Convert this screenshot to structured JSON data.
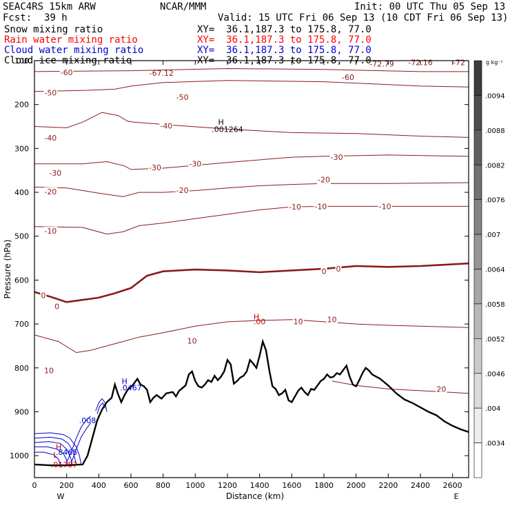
{
  "header": {
    "model": "SEAC4RS 15km ARW",
    "org": "NCAR/MMM",
    "init": "Init: 00 UTC Thu 05 Sep 13",
    "fcst_label": "Fcst:",
    "fcst_value": "39 h",
    "valid": "Valid: 15 UTC Fri 06 Sep 13 (10 CDT Fri 06 Sep 13)"
  },
  "fields": [
    {
      "name": "Snow mixing ratio",
      "xy": "XY=  36.1,187.3 to 175.8, 77.0",
      "color": "#000000"
    },
    {
      "name": "Rain water mixing ratio",
      "xy": "XY=  36.1,187.3 to 175.8, 77.0",
      "color": "#ff0000"
    },
    {
      "name": "Cloud water mixing ratio",
      "xy": "XY=  36.1,187.3 to 175.8, 77.0",
      "color": "#0000cc"
    },
    {
      "name": "Cloud ice mixing ratio",
      "xy": "XY=  36.1,187.3 to 175.8, 77.0",
      "color": "#000000"
    }
  ],
  "chart_data": {
    "type": "cross-section",
    "xlabel": "Distance (km)",
    "ylabel": "Pressure (hPa)",
    "xlim": [
      0,
      2700
    ],
    "ylim": [
      1050,
      100
    ],
    "x_ticks": [
      0,
      200,
      400,
      600,
      800,
      1000,
      1200,
      1400,
      1600,
      1800,
      2000,
      2200,
      2400,
      2600
    ],
    "y_ticks": [
      100,
      200,
      300,
      400,
      500,
      600,
      700,
      800,
      900,
      1000
    ],
    "x_end_labels": {
      "left": "W",
      "right": "E"
    },
    "colorbar": {
      "unit": "g kg⁻¹",
      "labels": [
        ".0094",
        ".0088",
        ".0082",
        ".0076",
        ".007",
        ".0064",
        ".0058",
        ".0052",
        ".0046",
        ".004",
        ".0034"
      ]
    },
    "temperature_contours": [
      {
        "value": -60,
        "pts": [
          [
            0,
            125
          ],
          [
            600,
            123
          ],
          [
            1200,
            118
          ],
          [
            1800,
            120
          ],
          [
            2400,
            125
          ],
          [
            2700,
            125
          ]
        ]
      },
      {
        "value": -50,
        "pts": [
          [
            0,
            170
          ],
          [
            300,
            168
          ],
          [
            500,
            165
          ],
          [
            600,
            158
          ],
          [
            800,
            150
          ],
          [
            1200,
            145
          ],
          [
            1800,
            148
          ],
          [
            2400,
            158
          ],
          [
            2700,
            160
          ]
        ]
      },
      {
        "value": -40,
        "pts": [
          [
            0,
            250
          ],
          [
            200,
            253
          ],
          [
            300,
            240
          ],
          [
            420,
            218
          ],
          [
            520,
            225
          ],
          [
            580,
            238
          ],
          [
            620,
            240
          ],
          [
            900,
            248
          ],
          [
            1200,
            256
          ],
          [
            1600,
            264
          ],
          [
            2000,
            266
          ],
          [
            2400,
            272
          ],
          [
            2700,
            275
          ]
        ]
      },
      {
        "value": -30,
        "pts": [
          [
            0,
            335
          ],
          [
            300,
            335
          ],
          [
            450,
            330
          ],
          [
            560,
            340
          ],
          [
            600,
            348
          ],
          [
            800,
            345
          ],
          [
            1200,
            332
          ],
          [
            1600,
            320
          ],
          [
            1800,
            318
          ],
          [
            2200,
            315
          ],
          [
            2700,
            318
          ]
        ]
      },
      {
        "value": -20,
        "pts": [
          [
            0,
            388
          ],
          [
            200,
            390
          ],
          [
            400,
            402
          ],
          [
            550,
            410
          ],
          [
            650,
            400
          ],
          [
            800,
            400
          ],
          [
            1000,
            396
          ],
          [
            1200,
            390
          ],
          [
            1400,
            385
          ],
          [
            1600,
            382
          ],
          [
            1800,
            380
          ],
          [
            2200,
            380
          ],
          [
            2700,
            378
          ]
        ]
      },
      {
        "value": -10,
        "pts": [
          [
            0,
            478
          ],
          [
            300,
            480
          ],
          [
            450,
            495
          ],
          [
            550,
            490
          ],
          [
            650,
            476
          ],
          [
            800,
            470
          ],
          [
            1000,
            460
          ],
          [
            1200,
            450
          ],
          [
            1400,
            440
          ],
          [
            1600,
            433
          ],
          [
            1800,
            432
          ],
          [
            2200,
            432
          ],
          [
            2700,
            432
          ]
        ]
      },
      {
        "value": 0,
        "pts": [
          [
            0,
            627
          ],
          [
            100,
            638
          ],
          [
            200,
            650
          ],
          [
            300,
            645
          ],
          [
            400,
            640
          ],
          [
            500,
            630
          ],
          [
            600,
            618
          ],
          [
            700,
            590
          ],
          [
            800,
            580
          ],
          [
            1000,
            576
          ],
          [
            1200,
            578
          ],
          [
            1400,
            582
          ],
          [
            1600,
            578
          ],
          [
            1800,
            574
          ],
          [
            2000,
            568
          ],
          [
            2200,
            570
          ],
          [
            2400,
            568
          ],
          [
            2700,
            562
          ]
        ]
      },
      {
        "value": 10,
        "pts": [
          [
            0,
            725
          ],
          [
            150,
            740
          ],
          [
            260,
            765
          ],
          [
            350,
            760
          ],
          [
            450,
            750
          ],
          [
            550,
            740
          ],
          [
            650,
            730
          ],
          [
            800,
            720
          ],
          [
            1000,
            705
          ],
          [
            1200,
            695
          ],
          [
            1400,
            692
          ],
          [
            1600,
            690
          ],
          [
            1800,
            695
          ],
          [
            2000,
            700
          ],
          [
            2200,
            703
          ],
          [
            2700,
            708
          ]
        ]
      },
      {
        "value": 20,
        "pts": [
          [
            1850,
            830
          ],
          [
            2000,
            840
          ],
          [
            2200,
            848
          ],
          [
            2400,
            852
          ],
          [
            2700,
            858
          ]
        ]
      }
    ],
    "contour_labels": [
      {
        "text": "-60",
        "x": 200,
        "p": 127
      },
      {
        "text": "-60",
        "x": 1950,
        "p": 138
      },
      {
        "text": "-50",
        "x": 100,
        "p": 173
      },
      {
        "text": "-50",
        "x": 920,
        "p": 183
      },
      {
        "text": "-40",
        "x": 100,
        "p": 276
      },
      {
        "text": "-40",
        "x": 820,
        "p": 248
      },
      {
        "text": "-30",
        "x": 130,
        "p": 356
      },
      {
        "text": "-30",
        "x": 750,
        "p": 343
      },
      {
        "text": "-30",
        "x": 1000,
        "p": 335
      },
      {
        "text": "-30",
        "x": 1880,
        "p": 320
      },
      {
        "text": "-20",
        "x": 100,
        "p": 398
      },
      {
        "text": "-20",
        "x": 920,
        "p": 395
      },
      {
        "text": "-20",
        "x": 1800,
        "p": 371
      },
      {
        "text": "-10",
        "x": 100,
        "p": 488
      },
      {
        "text": "-10",
        "x": 1620,
        "p": 433
      },
      {
        "text": "-10",
        "x": 1780,
        "p": 432
      },
      {
        "text": "-10",
        "x": 2180,
        "p": 432
      },
      {
        "text": "0",
        "x": 55,
        "p": 635
      },
      {
        "text": "0",
        "x": 140,
        "p": 660
      },
      {
        "text": "0",
        "x": 1800,
        "p": 580
      },
      {
        "text": "0",
        "x": 1890,
        "p": 574
      },
      {
        "text": "10",
        "x": 90,
        "p": 806
      },
      {
        "text": "10",
        "x": 980,
        "p": 738
      },
      {
        "text": "10",
        "x": 1640,
        "p": 694
      },
      {
        "text": "10",
        "x": 1850,
        "p": 690
      },
      {
        "text": "20",
        "x": 2530,
        "p": 848
      }
    ],
    "extrema_labels": [
      {
        "text": "-67.12",
        "x": 790,
        "p": 128
      },
      {
        "text": "-72.79",
        "x": 2160,
        "p": 107
      },
      {
        "text": "-72.16",
        "x": 2400,
        "p": 104
      },
      {
        "text": "-72",
        "x": 2640,
        "p": 104
      },
      {
        "text": "H",
        "x": 1160,
        "p": 240,
        "color": "#000000"
      },
      {
        "text": ".001264",
        "x": 1200,
        "p": 256,
        "color": "#000000"
      },
      {
        "text": "H",
        "x": 1380,
        "p": 683,
        "color": "#cc0000"
      },
      {
        "text": ".00",
        "x": 1400,
        "p": 694,
        "color": "#cc0000"
      },
      {
        "text": "H",
        "x": 560,
        "p": 830,
        "color": "#0000cc"
      },
      {
        "text": ".0467",
        "x": 600,
        "p": 845,
        "color": "#0000cc"
      },
      {
        "text": ".008",
        "x": 330,
        "p": 920,
        "color": "#0000cc"
      },
      {
        "text": "H",
        "x": 150,
        "p": 980,
        "color": "#cc0000"
      },
      {
        "text": ".8465",
        "x": 200,
        "p": 992,
        "color": "#0000cc"
      },
      {
        "text": "L",
        "x": 130,
        "p": 998,
        "color": "#cc0000"
      },
      {
        "text": ".01787",
        "x": 185,
        "p": 1020,
        "color": "#cc0000"
      }
    ],
    "terrain": [
      [
        0,
        1020
      ],
      [
        100,
        1022
      ],
      [
        200,
        1022
      ],
      [
        300,
        1020
      ],
      [
        330,
        1000
      ],
      [
        360,
        960
      ],
      [
        390,
        920
      ],
      [
        420,
        895
      ],
      [
        450,
        878
      ],
      [
        480,
        868
      ],
      [
        500,
        838
      ],
      [
        520,
        860
      ],
      [
        540,
        878
      ],
      [
        560,
        862
      ],
      [
        580,
        850
      ],
      [
        610,
        840
      ],
      [
        640,
        825
      ],
      [
        660,
        838
      ],
      [
        680,
        842
      ],
      [
        700,
        850
      ],
      [
        720,
        878
      ],
      [
        740,
        868
      ],
      [
        760,
        862
      ],
      [
        790,
        870
      ],
      [
        820,
        858
      ],
      [
        860,
        855
      ],
      [
        880,
        865
      ],
      [
        900,
        852
      ],
      [
        940,
        840
      ],
      [
        960,
        815
      ],
      [
        980,
        808
      ],
      [
        1000,
        830
      ],
      [
        1020,
        842
      ],
      [
        1040,
        845
      ],
      [
        1060,
        838
      ],
      [
        1080,
        828
      ],
      [
        1100,
        832
      ],
      [
        1120,
        818
      ],
      [
        1140,
        828
      ],
      [
        1160,
        820
      ],
      [
        1180,
        808
      ],
      [
        1200,
        782
      ],
      [
        1220,
        792
      ],
      [
        1240,
        836
      ],
      [
        1260,
        830
      ],
      [
        1280,
        822
      ],
      [
        1300,
        818
      ],
      [
        1320,
        808
      ],
      [
        1340,
        782
      ],
      [
        1360,
        790
      ],
      [
        1380,
        800
      ],
      [
        1400,
        772
      ],
      [
        1420,
        740
      ],
      [
        1440,
        760
      ],
      [
        1460,
        805
      ],
      [
        1480,
        842
      ],
      [
        1500,
        848
      ],
      [
        1520,
        862
      ],
      [
        1540,
        858
      ],
      [
        1560,
        850
      ],
      [
        1580,
        874
      ],
      [
        1600,
        878
      ],
      [
        1620,
        865
      ],
      [
        1640,
        852
      ],
      [
        1660,
        845
      ],
      [
        1680,
        855
      ],
      [
        1700,
        862
      ],
      [
        1720,
        848
      ],
      [
        1740,
        850
      ],
      [
        1760,
        840
      ],
      [
        1780,
        830
      ],
      [
        1800,
        825
      ],
      [
        1820,
        815
      ],
      [
        1840,
        822
      ],
      [
        1860,
        820
      ],
      [
        1880,
        812
      ],
      [
        1900,
        815
      ],
      [
        1920,
        805
      ],
      [
        1940,
        795
      ],
      [
        1960,
        820
      ],
      [
        1980,
        838
      ],
      [
        2000,
        842
      ],
      [
        2020,
        828
      ],
      [
        2040,
        812
      ],
      [
        2060,
        800
      ],
      [
        2080,
        806
      ],
      [
        2100,
        815
      ],
      [
        2150,
        825
      ],
      [
        2200,
        840
      ],
      [
        2250,
        858
      ],
      [
        2300,
        872
      ],
      [
        2350,
        880
      ],
      [
        2400,
        890
      ],
      [
        2450,
        900
      ],
      [
        2500,
        908
      ],
      [
        2550,
        922
      ],
      [
        2600,
        932
      ],
      [
        2650,
        940
      ],
      [
        2700,
        946
      ]
    ],
    "cloud_water_contours": [
      [
        [
          0,
          950
        ],
        [
          100,
          948
        ],
        [
          180,
          952
        ],
        [
          220,
          960
        ],
        [
          260,
          980
        ],
        [
          280,
          1000
        ],
        [
          290,
          1020
        ]
      ],
      [
        [
          0,
          960
        ],
        [
          100,
          958
        ],
        [
          170,
          962
        ],
        [
          210,
          972
        ],
        [
          240,
          990
        ],
        [
          260,
          1020
        ]
      ],
      [
        [
          0,
          970
        ],
        [
          90,
          968
        ],
        [
          160,
          972
        ],
        [
          200,
          985
        ],
        [
          225,
          1005
        ],
        [
          235,
          1020
        ]
      ],
      [
        [
          0,
          980
        ],
        [
          80,
          980
        ],
        [
          140,
          985
        ],
        [
          180,
          995
        ],
        [
          200,
          1010
        ],
        [
          205,
          1020
        ]
      ],
      [
        [
          0,
          992
        ],
        [
          60,
          992
        ],
        [
          120,
          998
        ],
        [
          150,
          1008
        ],
        [
          160,
          1020
        ]
      ],
      [
        [
          200,
          1015
        ],
        [
          230,
          990
        ],
        [
          260,
          960
        ],
        [
          290,
          935
        ],
        [
          320,
          920
        ],
        [
          350,
          910
        ]
      ],
      [
        [
          230,
          1015
        ],
        [
          260,
          985
        ],
        [
          290,
          958
        ],
        [
          320,
          940
        ],
        [
          350,
          925
        ]
      ],
      [
        [
          380,
          898
        ],
        [
          400,
          880
        ],
        [
          420,
          870
        ],
        [
          440,
          880
        ],
        [
          450,
          900
        ]
      ],
      [
        [
          390,
          905
        ],
        [
          405,
          888
        ],
        [
          425,
          880
        ],
        [
          440,
          892
        ]
      ]
    ]
  }
}
